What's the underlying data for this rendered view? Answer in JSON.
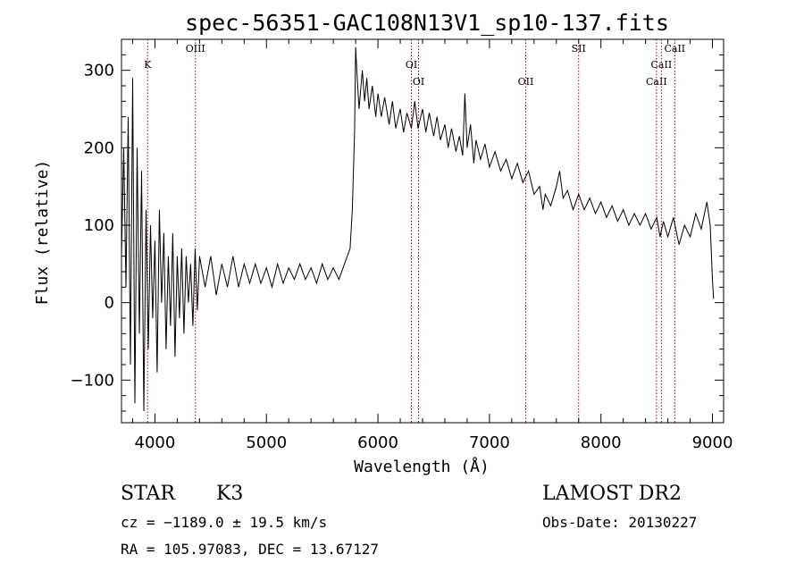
{
  "chart_data": {
    "type": "line",
    "title": "spec-56351-GAC108N13V1_sp10-137.fits",
    "xlabel": "Wavelength (Å)",
    "ylabel": "Flux (relative)",
    "xlim": [
      3700,
      9100
    ],
    "ylim": [
      -155,
      340
    ],
    "x_ticks": [
      4000,
      5000,
      6000,
      7000,
      8000,
      9000
    ],
    "y_ticks": [
      -100,
      0,
      100,
      200,
      300
    ],
    "grid": false,
    "series": [
      {
        "points": [
          [
            3700,
            60
          ],
          [
            3720,
            200
          ],
          [
            3740,
            20
          ],
          [
            3760,
            240
          ],
          [
            3780,
            -80
          ],
          [
            3800,
            290
          ],
          [
            3820,
            -130
          ],
          [
            3840,
            200
          ],
          [
            3860,
            -40
          ],
          [
            3880,
            170
          ],
          [
            3900,
            -140
          ],
          [
            3920,
            120
          ],
          [
            3940,
            -60
          ],
          [
            3960,
            100
          ],
          [
            3980,
            -20
          ],
          [
            4000,
            80
          ],
          [
            4020,
            -90
          ],
          [
            4040,
            120
          ],
          [
            4060,
            0
          ],
          [
            4080,
            90
          ],
          [
            4100,
            -60
          ],
          [
            4120,
            60
          ],
          [
            4140,
            -30
          ],
          [
            4160,
            90
          ],
          [
            4180,
            -70
          ],
          [
            4200,
            60
          ],
          [
            4220,
            -20
          ],
          [
            4240,
            70
          ],
          [
            4260,
            -40
          ],
          [
            4280,
            60
          ],
          [
            4300,
            0
          ],
          [
            4320,
            50
          ],
          [
            4340,
            -30
          ],
          [
            4360,
            70
          ],
          [
            4380,
            -10
          ],
          [
            4400,
            60
          ],
          [
            4450,
            20
          ],
          [
            4500,
            60
          ],
          [
            4550,
            10
          ],
          [
            4600,
            50
          ],
          [
            4650,
            20
          ],
          [
            4700,
            60
          ],
          [
            4750,
            20
          ],
          [
            4800,
            50
          ],
          [
            4850,
            25
          ],
          [
            4900,
            50
          ],
          [
            4950,
            25
          ],
          [
            5000,
            45
          ],
          [
            5050,
            20
          ],
          [
            5100,
            50
          ],
          [
            5150,
            25
          ],
          [
            5200,
            45
          ],
          [
            5250,
            30
          ],
          [
            5300,
            50
          ],
          [
            5350,
            30
          ],
          [
            5400,
            45
          ],
          [
            5450,
            25
          ],
          [
            5500,
            50
          ],
          [
            5550,
            30
          ],
          [
            5600,
            45
          ],
          [
            5650,
            30
          ],
          [
            5700,
            50
          ],
          [
            5750,
            70
          ],
          [
            5770,
            120
          ],
          [
            5790,
            220
          ],
          [
            5800,
            330
          ],
          [
            5810,
            300
          ],
          [
            5830,
            250
          ],
          [
            5860,
            300
          ],
          [
            5880,
            260
          ],
          [
            5900,
            290
          ],
          [
            5920,
            250
          ],
          [
            5950,
            280
          ],
          [
            5980,
            240
          ],
          [
            6000,
            270
          ],
          [
            6030,
            240
          ],
          [
            6060,
            265
          ],
          [
            6100,
            230
          ],
          [
            6130,
            260
          ],
          [
            6160,
            225
          ],
          [
            6200,
            250
          ],
          [
            6230,
            220
          ],
          [
            6260,
            245
          ],
          [
            6300,
            225
          ],
          [
            6330,
            260
          ],
          [
            6360,
            225
          ],
          [
            6400,
            250
          ],
          [
            6430,
            220
          ],
          [
            6460,
            245
          ],
          [
            6500,
            215
          ],
          [
            6530,
            240
          ],
          [
            6560,
            210
          ],
          [
            6600,
            230
          ],
          [
            6630,
            200
          ],
          [
            6660,
            225
          ],
          [
            6700,
            195
          ],
          [
            6730,
            215
          ],
          [
            6760,
            190
          ],
          [
            6780,
            270
          ],
          [
            6800,
            200
          ],
          [
            6830,
            230
          ],
          [
            6860,
            180
          ],
          [
            6880,
            210
          ],
          [
            6920,
            185
          ],
          [
            6960,
            205
          ],
          [
            7000,
            175
          ],
          [
            7050,
            195
          ],
          [
            7100,
            170
          ],
          [
            7150,
            185
          ],
          [
            7200,
            160
          ],
          [
            7250,
            180
          ],
          [
            7300,
            155
          ],
          [
            7350,
            170
          ],
          [
            7400,
            140
          ],
          [
            7450,
            150
          ],
          [
            7480,
            120
          ],
          [
            7500,
            140
          ],
          [
            7550,
            125
          ],
          [
            7600,
            150
          ],
          [
            7630,
            170
          ],
          [
            7660,
            135
          ],
          [
            7700,
            145
          ],
          [
            7750,
            120
          ],
          [
            7800,
            140
          ],
          [
            7850,
            120
          ],
          [
            7900,
            135
          ],
          [
            7950,
            115
          ],
          [
            8000,
            130
          ],
          [
            8050,
            110
          ],
          [
            8100,
            125
          ],
          [
            8150,
            105
          ],
          [
            8200,
            120
          ],
          [
            8250,
            100
          ],
          [
            8300,
            115
          ],
          [
            8350,
            100
          ],
          [
            8400,
            115
          ],
          [
            8450,
            95
          ],
          [
            8500,
            110
          ],
          [
            8530,
            85
          ],
          [
            8560,
            105
          ],
          [
            8600,
            85
          ],
          [
            8650,
            110
          ],
          [
            8700,
            75
          ],
          [
            8750,
            100
          ],
          [
            8800,
            85
          ],
          [
            8850,
            115
          ],
          [
            8900,
            95
          ],
          [
            8950,
            130
          ],
          [
            8980,
            100
          ],
          [
            9000,
            30
          ],
          [
            9010,
            5
          ]
        ]
      }
    ],
    "line_markers": [
      {
        "label": "K",
        "x": 3934
      },
      {
        "label": "OIII",
        "x": 4363
      },
      {
        "label": "OI",
        "x": 6300
      },
      {
        "label": "OI",
        "x": 6364
      },
      {
        "label": "OII",
        "x": 7325
      },
      {
        "label": "SII",
        "x": 7800
      },
      {
        "label": "CaII",
        "x": 8498
      },
      {
        "label": "CaII",
        "x": 8542
      },
      {
        "label": "CaII",
        "x": 8662
      }
    ],
    "marker_color": "#8b0000",
    "line_color": "#000000"
  },
  "info": {
    "object_class": "STAR",
    "subclass": "K3",
    "survey": "LAMOST DR2",
    "velocity": "cz = −1189.0 ± 19.5 km/s",
    "obs_date": "Obs-Date: 20130227",
    "coords": "RA = 105.97083, DEC =  13.67127"
  }
}
